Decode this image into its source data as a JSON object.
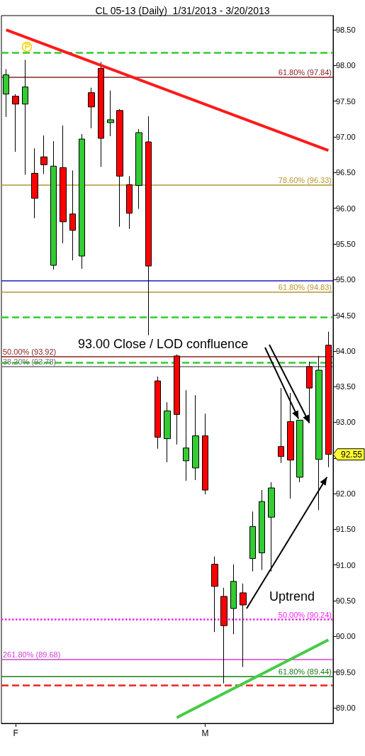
{
  "chart_data": {
    "type": "candlestick",
    "title": "CL 05-13 (Daily)  1/31/2013 - 3/20/2013",
    "categories": [
      null,
      "F",
      null,
      null,
      null,
      null,
      null,
      null,
      null,
      null,
      null,
      null,
      null,
      null,
      null,
      null,
      null,
      null,
      null,
      null,
      null,
      "M",
      null,
      null,
      null,
      null,
      null,
      null,
      null,
      null,
      null,
      null,
      null,
      null,
      null
    ],
    "ohlc": [
      [
        97.6,
        97.95,
        97.28,
        97.87
      ],
      [
        97.57,
        97.6,
        96.79,
        97.46
      ],
      [
        97.46,
        98.08,
        96.47,
        97.7
      ],
      [
        96.49,
        96.84,
        95.86,
        96.14
      ],
      [
        96.72,
        97.02,
        96.48,
        96.61
      ],
      [
        95.2,
        96.94,
        95.14,
        96.59
      ],
      [
        96.57,
        97.16,
        95.51,
        95.81
      ],
      [
        95.92,
        96.53,
        95.27,
        95.69
      ],
      [
        95.33,
        97.04,
        95.15,
        96.97
      ],
      [
        97.62,
        97.69,
        97.12,
        97.42
      ],
      [
        97.96,
        98.05,
        96.58,
        96.98
      ],
      [
        97.2,
        97.65,
        97.01,
        97.24
      ],
      [
        97.37,
        97.39,
        95.74,
        96.45
      ],
      [
        96.33,
        96.45,
        95.71,
        95.93
      ],
      [
        96.32,
        97.11,
        95.99,
        97.06
      ],
      [
        96.93,
        97.29,
        94.22,
        95.19
      ],
      [
        93.58,
        93.64,
        92.63,
        92.79
      ],
      [
        92.77,
        93.28,
        92.44,
        93.16
      ],
      [
        93.93,
        93.95,
        92.69,
        93.11
      ],
      [
        92.46,
        93.45,
        92.18,
        92.64
      ],
      [
        92.36,
        93.38,
        92.19,
        92.81
      ],
      [
        92.81,
        93.12,
        91.99,
        92.05
      ],
      [
        91.01,
        91.12,
        90.06,
        90.7
      ],
      [
        90.56,
        90.68,
        89.34,
        90.15
      ],
      [
        90.39,
        91.01,
        90.03,
        90.77
      ],
      [
        90.61,
        90.74,
        89.57,
        90.44
      ],
      [
        91.09,
        91.75,
        90.91,
        91.54
      ],
      [
        91.17,
        92.05,
        90.93,
        91.89
      ],
      [
        91.67,
        92.16,
        90.91,
        92.08
      ],
      [
        92.66,
        93.48,
        92.43,
        92.52
      ],
      [
        93.01,
        93.41,
        91.93,
        92.47
      ],
      [
        92.23,
        93.03,
        92.16,
        93.03
      ],
      [
        93.78,
        93.85,
        93.01,
        93.48
      ],
      [
        92.48,
        93.93,
        91.77,
        93.73
      ],
      [
        94.08,
        94.27,
        92.37,
        92.55
      ]
    ],
    "colors": [
      "#33cc33",
      "#ff0000",
      "#33cc33",
      "#ff0000",
      "#ff0000",
      "#33cc33",
      "#ff0000",
      "#ff0000",
      "#33cc33",
      "#ff0000",
      "#ff0000",
      "#33cc33",
      "#ff0000",
      "#ff0000",
      "#33cc33",
      "#ff0000",
      "#ff0000",
      "#33cc33",
      "#ff0000",
      "#33cc33",
      "#33cc33",
      "#ff0000",
      "#ff0000",
      "#ff0000",
      "#33cc33",
      "#ff0000",
      "#33cc33",
      "#33cc33",
      "#33cc33",
      "#ff0000",
      "#ff0000",
      "#33cc33",
      "#ff0000",
      "#33cc33",
      "#ff0000"
    ],
    "series": [
      {
        "type": "line",
        "color": "#ff1a1a",
        "values": [
          98.5,
          null,
          null,
          null,
          null,
          null,
          null,
          null,
          null,
          null,
          null,
          null,
          null,
          null,
          null,
          null,
          null,
          null,
          null,
          null,
          null,
          null,
          null,
          null,
          null,
          null,
          null,
          null,
          null,
          null,
          null,
          null,
          null,
          null,
          96.81
        ]
      },
      {
        "type": "line",
        "color": "#44cc44",
        "values": [
          null,
          null,
          null,
          null,
          null,
          null,
          null,
          null,
          null,
          null,
          null,
          null,
          null,
          null,
          null,
          null,
          null,
          null,
          88.86,
          null,
          null,
          null,
          null,
          null,
          null,
          null,
          null,
          null,
          null,
          null,
          null,
          null,
          null,
          null,
          89.95
        ]
      }
    ],
    "marker": "none",
    "ylim": [
      88.78,
      98.7
    ],
    "yticks": [
      {
        "value": 89,
        "label": "89.00"
      },
      {
        "value": 89.5,
        "label": "89.50"
      },
      {
        "value": 90,
        "label": "90.00"
      },
      {
        "value": 90.5,
        "label": "90.50"
      },
      {
        "value": 91,
        "label": "91.00"
      },
      {
        "value": 91.5,
        "label": "91.50"
      },
      {
        "value": 92,
        "label": "92.00"
      },
      {
        "value": 92.5,
        "label": null
      },
      {
        "value": 93,
        "label": "93.00"
      },
      {
        "value": 93.5,
        "label": "93.50"
      },
      {
        "value": 94,
        "label": "94.00"
      },
      {
        "value": 94.5,
        "label": "94.50"
      },
      {
        "value": 95,
        "label": "95.00"
      },
      {
        "value": 95.5,
        "label": "95.50"
      },
      {
        "value": 96,
        "label": "96.00"
      },
      {
        "value": 96.5,
        "label": "96.50"
      },
      {
        "value": 97,
        "label": "97.00"
      },
      {
        "value": 97.5,
        "label": "97.50"
      },
      {
        "value": 98,
        "label": "98.00"
      },
      {
        "value": 98.5,
        "label": "98.50"
      }
    ],
    "ref_lines": [
      {
        "axis": "y",
        "value": 98.18,
        "label": null,
        "color": "#33cc33",
        "line_style": "dashed"
      },
      {
        "axis": "y",
        "value": 97.84,
        "label": "61.80% (97.84)",
        "color": "#8b2323",
        "line_style": "solid"
      },
      {
        "axis": "y",
        "value": 96.33,
        "label": "78.60% (96.33)",
        "color": "#b8962e",
        "line_style": "solid"
      },
      {
        "axis": "y",
        "value": 94.98,
        "label": null,
        "color": "#1a1acc",
        "line_style": "solid"
      },
      {
        "axis": "y",
        "value": 94.83,
        "label": "61.80% (94.83)",
        "color": "#b8962e",
        "line_style": "solid"
      },
      {
        "axis": "y",
        "value": 94.47,
        "label": null,
        "color": "#33cc33",
        "line_style": "dashed"
      },
      {
        "axis": "y",
        "value": 93.92,
        "label": "50.00% (93.92)",
        "color": "#8b2323",
        "line_style": "solid"
      },
      {
        "axis": "y",
        "value": 93.84,
        "label": null,
        "color": "#33cc33",
        "line_style": "dashed"
      },
      {
        "axis": "y",
        "value": 93.78,
        "label": "38.20% (93.78)",
        "color": "#707070",
        "line_style": "solid"
      },
      {
        "axis": "y",
        "value": 90.24,
        "label": "50.00% (90.24)",
        "color": "#ee22ee",
        "line_style": "dotted"
      },
      {
        "axis": "y",
        "value": 89.68,
        "label": "261.80% (89.68)",
        "color": "#cc44cc",
        "line_style": "solid"
      },
      {
        "axis": "y",
        "value": 89.44,
        "label": "61.80% (89.44)",
        "color": "#1a7a1a",
        "line_style": "solid"
      },
      {
        "axis": "y",
        "value": 89.31,
        "label": null,
        "color": "#ee2222",
        "line_style": "dashed"
      }
    ],
    "annotations": [
      "93.00 Close / LOD confluence",
      "Uptrend",
      "92.55"
    ]
  }
}
